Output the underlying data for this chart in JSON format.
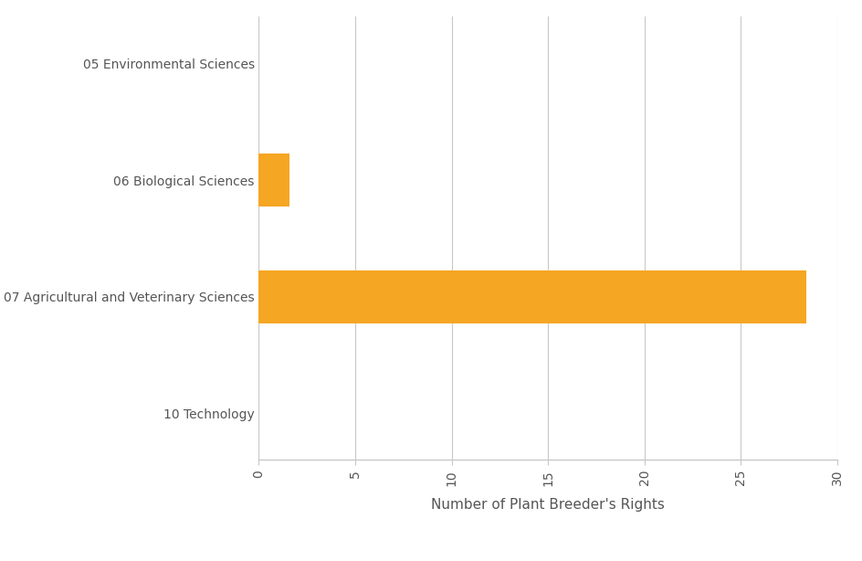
{
  "categories": [
    "10 Technology",
    "07 Agricultural and Veterinary Sciences",
    "06 Biological Sciences",
    "05 Environmental Sciences"
  ],
  "values": [
    0,
    28.4,
    1.6,
    0
  ],
  "bar_color": "#F5A623",
  "xlabel": "Number of Plant Breeder's Rights",
  "xlim": [
    0,
    30
  ],
  "xticks": [
    0,
    5,
    10,
    15,
    20,
    25,
    30
  ],
  "background_color": "#ffffff",
  "label_color": "#555555",
  "grid_color": "#c8c8c8",
  "bar_height": 0.45,
  "tick_fontsize": 10,
  "label_fontsize": 11,
  "ytick_fontsize": 10
}
